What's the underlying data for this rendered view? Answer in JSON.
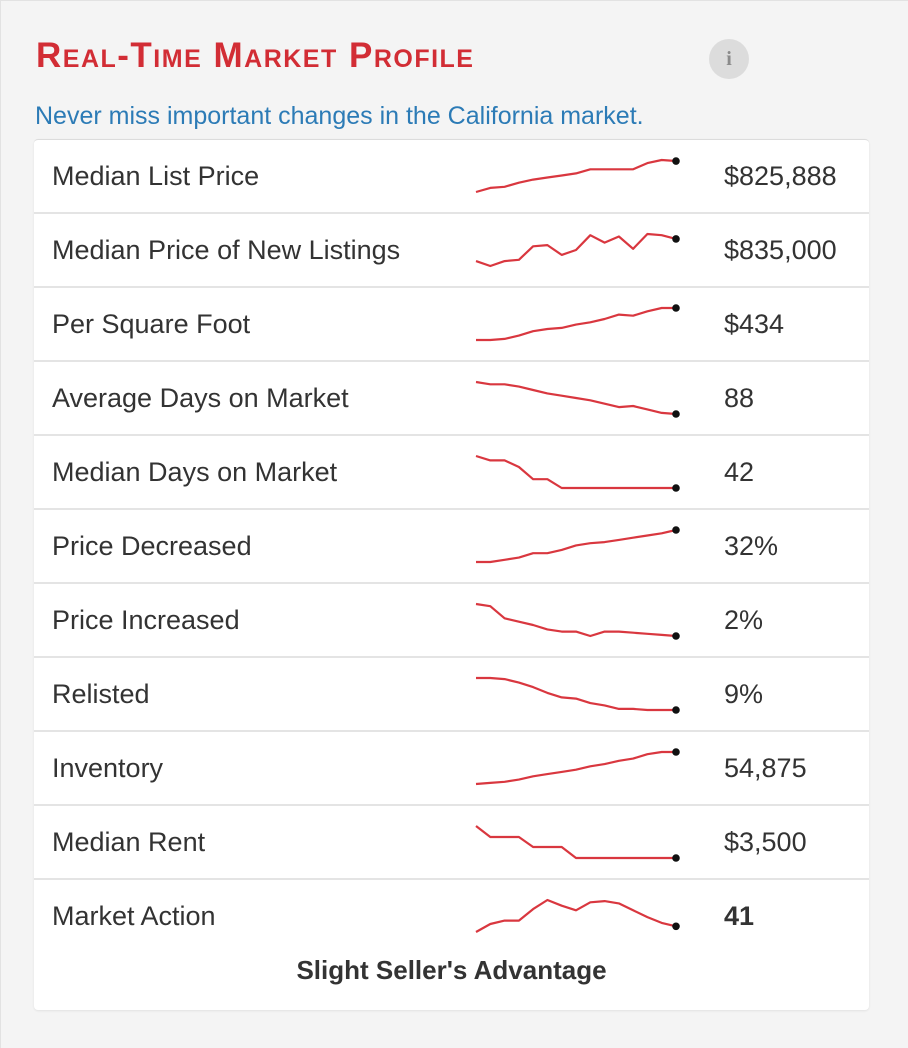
{
  "header": {
    "title": "Real-Time Market Profile",
    "subtitle": "Never miss important changes in the California market.",
    "info_icon": "info-icon",
    "info_glyph": "i"
  },
  "colors": {
    "title": "#d22d35",
    "subtitle": "#2c7bb6",
    "sparkline": "#d9373f",
    "endpoint": "#111111"
  },
  "rows": [
    {
      "label": "Median List Price",
      "value": "$825,888",
      "bold": false,
      "trend": [
        0,
        4,
        5,
        9,
        12,
        14,
        16,
        18,
        22,
        22,
        22,
        22,
        28,
        31,
        30
      ]
    },
    {
      "label": "Median Price of New Listings",
      "value": "$835,000",
      "bold": false,
      "trend": [
        5,
        1,
        5,
        6,
        17,
        18,
        10,
        14,
        26,
        20,
        25,
        15,
        27,
        26,
        23
      ]
    },
    {
      "label": "Per Square Foot",
      "value": "$434",
      "bold": false,
      "trend": [
        0,
        0,
        1,
        4,
        8,
        10,
        11,
        14,
        16,
        19,
        23,
        22,
        26,
        29,
        29
      ]
    },
    {
      "label": "Average Days on Market",
      "value": "88",
      "bold": false,
      "trend": [
        29,
        27,
        27,
        25,
        22,
        19,
        17,
        15,
        13,
        10,
        7,
        8,
        5,
        2,
        1
      ]
    },
    {
      "label": "Median Days on Market",
      "value": "42",
      "bold": false,
      "trend": [
        29,
        25,
        25,
        19,
        8,
        8,
        0,
        0,
        0,
        0,
        0,
        0,
        0,
        0,
        0
      ]
    },
    {
      "label": "Price Decreased",
      "value": "32%",
      "bold": false,
      "trend": [
        0,
        0,
        2,
        4,
        8,
        8,
        11,
        15,
        17,
        18,
        20,
        22,
        24,
        26,
        29
      ]
    },
    {
      "label": "Price Increased",
      "value": "2%",
      "bold": false,
      "trend": [
        29,
        27,
        16,
        13,
        10,
        6,
        4,
        4,
        0,
        4,
        4,
        3,
        2,
        1,
        0
      ]
    },
    {
      "label": "Relisted",
      "value": "9%",
      "bold": false,
      "trend": [
        28,
        28,
        27,
        24,
        20,
        15,
        11,
        10,
        6,
        4,
        1,
        1,
        0,
        0,
        0
      ]
    },
    {
      "label": "Inventory",
      "value": "54,875",
      "bold": false,
      "trend": [
        0,
        1,
        2,
        4,
        7,
        9,
        11,
        13,
        16,
        18,
        21,
        23,
        27,
        29,
        29
      ]
    },
    {
      "label": "Median Rent",
      "value": "$3,500",
      "bold": false,
      "trend": [
        29,
        19,
        19,
        19,
        10,
        10,
        10,
        0,
        0,
        0,
        0,
        0,
        0,
        0,
        0
      ]
    },
    {
      "label": "Market Action",
      "value": "41",
      "bold": true,
      "trend": [
        0,
        7,
        10,
        10,
        20,
        28,
        23,
        19,
        26,
        27,
        25,
        19,
        13,
        8,
        5
      ]
    }
  ],
  "footer": {
    "market_action_label": "Slight Seller's Advantage"
  }
}
